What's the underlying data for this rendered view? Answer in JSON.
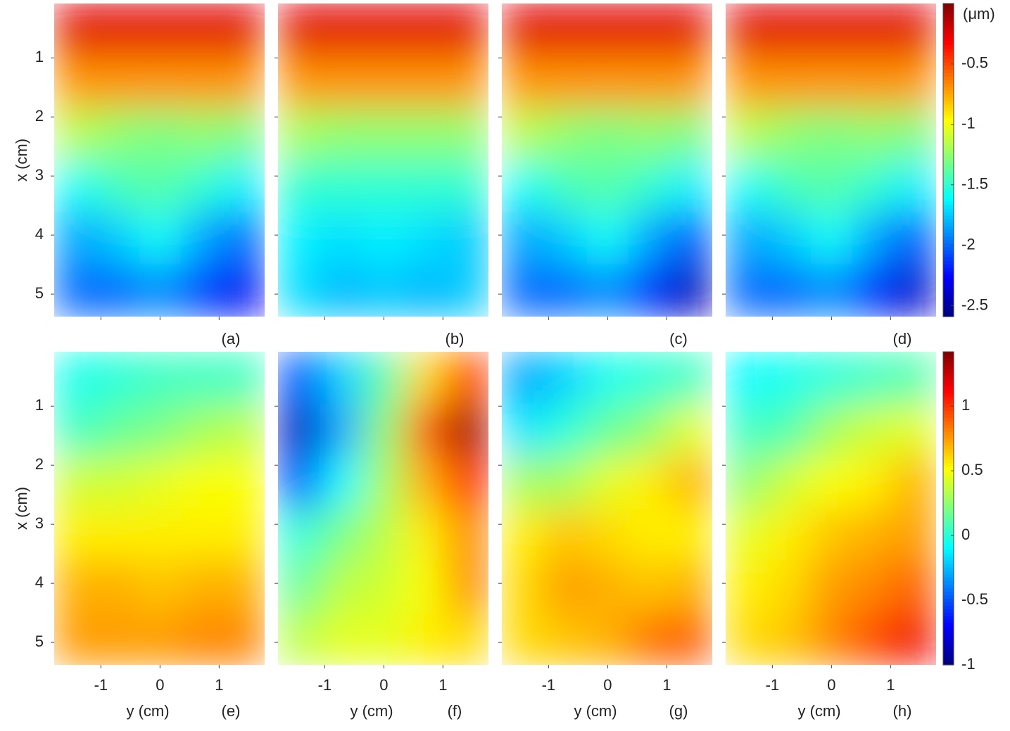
{
  "chart_data": {
    "type": "heatmap",
    "colormap": "jet",
    "xlabel": "y (cm)",
    "ylabel": "x (cm)",
    "xlim": [
      -1.79,
      1.77
    ],
    "xticks": [
      -1,
      0,
      1
    ],
    "ylim": [
      0.08,
      5.38
    ],
    "yticks": [
      1,
      2,
      3,
      4,
      5
    ],
    "y_reversed": true,
    "x": [
      -1.43,
      -0.72,
      0,
      0.71,
      1.42
    ],
    "y": [
      0.52,
      1.4,
      2.29,
      3.17,
      4.05,
      4.94
    ],
    "colorbars": [
      {
        "label": "(μm)",
        "clim": [
          -2.59,
          0
        ],
        "ticks": [
          -0.5,
          -1,
          -1.5,
          -2,
          -2.5
        ]
      },
      {
        "clim": [
          -1,
          1.42
        ],
        "ticks": [
          1,
          0.5,
          0,
          -0.5,
          -1
        ]
      }
    ],
    "panels": [
      {
        "label": "(a)",
        "colorbar": 0,
        "values": [
          [
            -0.25,
            -0.25,
            -0.25,
            -0.25,
            -0.25
          ],
          [
            -0.7,
            -0.7,
            -0.7,
            -0.7,
            -0.7
          ],
          [
            -1.15,
            -1.25,
            -1.3,
            -1.25,
            -1.3
          ],
          [
            -1.6,
            -1.45,
            -1.4,
            -1.5,
            -1.65
          ],
          [
            -1.85,
            -1.75,
            -1.6,
            -1.85,
            -2.0
          ],
          [
            -2.0,
            -2.0,
            -1.9,
            -2.1,
            -2.3
          ]
        ]
      },
      {
        "label": "(b)",
        "colorbar": 0,
        "values": [
          [
            -0.25,
            -0.25,
            -0.25,
            -0.25,
            -0.25
          ],
          [
            -0.7,
            -0.7,
            -0.7,
            -0.7,
            -0.7
          ],
          [
            -1.2,
            -1.25,
            -1.25,
            -1.25,
            -1.25
          ],
          [
            -1.5,
            -1.5,
            -1.5,
            -1.5,
            -1.5
          ],
          [
            -1.65,
            -1.7,
            -1.65,
            -1.7,
            -1.75
          ],
          [
            -1.7,
            -1.8,
            -1.75,
            -1.8,
            -1.75
          ]
        ]
      },
      {
        "label": "(c)",
        "colorbar": 0,
        "values": [
          [
            -0.25,
            -0.25,
            -0.25,
            -0.25,
            -0.25
          ],
          [
            -0.7,
            -0.7,
            -0.7,
            -0.7,
            -0.7
          ],
          [
            -1.15,
            -1.25,
            -1.3,
            -1.25,
            -1.3
          ],
          [
            -1.6,
            -1.45,
            -1.4,
            -1.5,
            -1.65
          ],
          [
            -1.85,
            -1.75,
            -1.6,
            -1.85,
            -2.05
          ],
          [
            -2.0,
            -2.0,
            -1.9,
            -2.15,
            -2.45
          ]
        ]
      },
      {
        "label": "(d)",
        "colorbar": 0,
        "values": [
          [
            -0.25,
            -0.25,
            -0.25,
            -0.25,
            -0.25
          ],
          [
            -0.7,
            -0.7,
            -0.7,
            -0.7,
            -0.7
          ],
          [
            -1.15,
            -1.25,
            -1.3,
            -1.25,
            -1.3
          ],
          [
            -1.6,
            -1.45,
            -1.4,
            -1.5,
            -1.65
          ],
          [
            -1.85,
            -1.75,
            -1.6,
            -1.85,
            -2.05
          ],
          [
            -2.0,
            -2.0,
            -1.9,
            -2.15,
            -2.4
          ]
        ]
      },
      {
        "label": "(e)",
        "colorbar": 1,
        "values": [
          [
            -0.05,
            0,
            0.05,
            0.05,
            0.05
          ],
          [
            0.05,
            0.15,
            0.2,
            0.3,
            0.35
          ],
          [
            0.4,
            0.4,
            0.45,
            0.5,
            0.5
          ],
          [
            0.55,
            0.55,
            0.55,
            0.55,
            0.55
          ],
          [
            0.7,
            0.7,
            0.65,
            0.7,
            0.7
          ],
          [
            0.75,
            0.75,
            0.75,
            0.8,
            0.8
          ]
        ]
      },
      {
        "label": "(f)",
        "colorbar": 1,
        "values": [
          [
            -0.5,
            -0.2,
            0.1,
            0.6,
            1.0
          ],
          [
            -0.85,
            -0.3,
            0.25,
            0.9,
            1.35
          ],
          [
            -0.5,
            -0.1,
            0.3,
            0.7,
            1.1
          ],
          [
            0,
            0.2,
            0.35,
            0.55,
            0.8
          ],
          [
            0.15,
            0.35,
            0.4,
            0.5,
            0.8
          ],
          [
            0.35,
            0.45,
            0.45,
            0.55,
            0.6
          ]
        ]
      },
      {
        "label": "(g)",
        "colorbar": 1,
        "values": [
          [
            -0.3,
            -0.2,
            -0.05,
            0,
            0.05
          ],
          [
            -0.15,
            0,
            0.15,
            0.25,
            0.45
          ],
          [
            0.3,
            0.3,
            0.45,
            0.55,
            0.7
          ],
          [
            0.55,
            0.65,
            0.6,
            0.55,
            0.55
          ],
          [
            0.6,
            0.75,
            0.7,
            0.65,
            0.7
          ],
          [
            0.6,
            0.65,
            0.7,
            0.85,
            0.9
          ]
        ]
      },
      {
        "label": "(h)",
        "colorbar": 1,
        "values": [
          [
            -0.1,
            -0.05,
            0,
            0.05,
            0.1
          ],
          [
            0.05,
            0.1,
            0.3,
            0.4,
            0.45
          ],
          [
            0.25,
            0.4,
            0.5,
            0.55,
            0.7
          ],
          [
            0.45,
            0.55,
            0.65,
            0.7,
            0.75
          ],
          [
            0.55,
            0.6,
            0.75,
            0.8,
            0.9
          ],
          [
            0.6,
            0.65,
            0.8,
            0.95,
            1.15
          ]
        ]
      }
    ]
  }
}
